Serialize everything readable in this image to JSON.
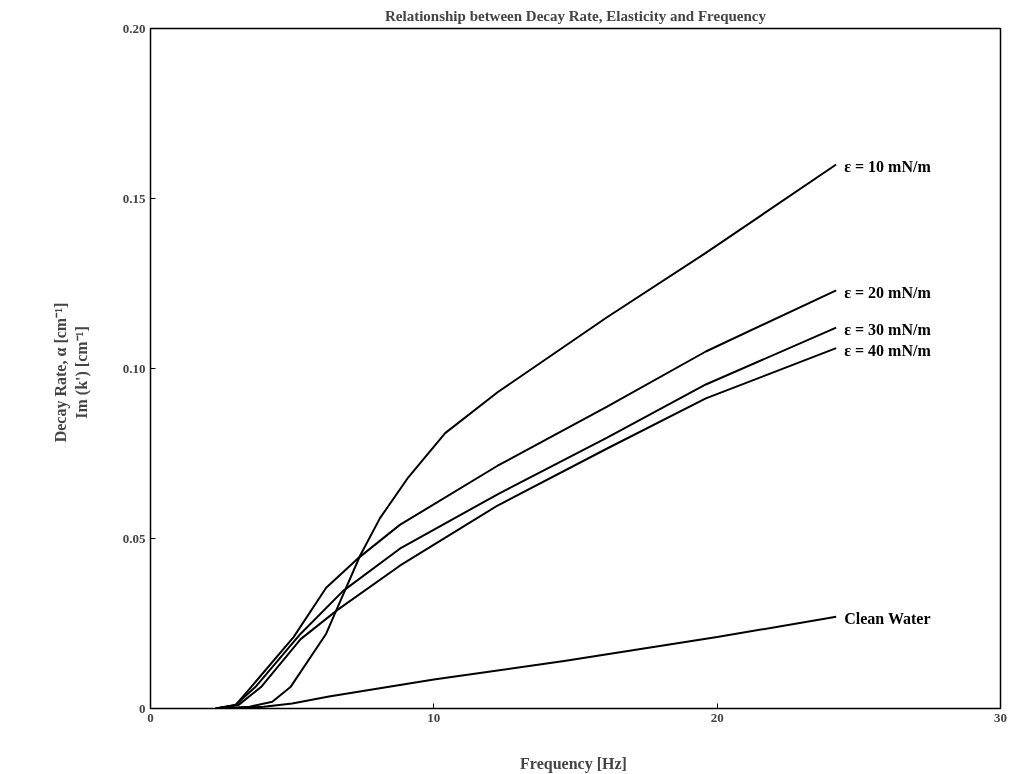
{
  "chart_data": {
    "type": "line",
    "title": "Relationship between Decay Rate, Elasticity and Frequency",
    "xlabel": "Frequency  [Hz]",
    "ylabel": "Decay Rate, α   [cm⁻¹]\nIm (k')   [cm⁻¹]",
    "xlim": [
      0,
      30
    ],
    "xticks": [
      0,
      10,
      20,
      30
    ],
    "ylim": [
      0,
      0.2
    ],
    "yticks": [
      0,
      0.05,
      {
        "value": 0.1,
        "label": "0.10"
      },
      0.15,
      {
        "value": 0.2,
        "label": "0.20"
      }
    ],
    "grid": false,
    "legend": false,
    "marker": "none",
    "line_style": "solid",
    "series": [
      {
        "name": "ε = 10 mN/m",
        "color": "#000000",
        "x": [
          2.5,
          3.5,
          4.3,
          4.94,
          6.2,
          7.4,
          8.1,
          9.1,
          10.4,
          12.25,
          16.1,
          19.6,
          24.2
        ],
        "values": [
          0,
          0.0005,
          0.002,
          0.0063,
          0.022,
          0.045,
          0.056,
          0.068,
          0.081,
          0.093,
          0.115,
          0.134,
          0.16
        ]
      },
      {
        "name": "ε = 20 mN/m",
        "color": "#000000",
        "x": [
          2.3,
          3.0,
          3.55,
          5.05,
          6.2,
          7.3,
          8.8,
          12.25,
          16.1,
          19.6,
          24.2
        ],
        "values": [
          0,
          0.001,
          0.0063,
          0.021,
          0.0355,
          0.044,
          0.054,
          0.0714,
          0.0887,
          0.105,
          0.123
        ]
      },
      {
        "name": "ε = 30 mN/m",
        "color": "#000000",
        "x": [
          2.3,
          3.0,
          3.7,
          5.3,
          6.8,
          8.8,
          12.25,
          16.1,
          19.6,
          24.2
        ],
        "values": [
          0,
          0.001,
          0.0063,
          0.022,
          0.0346,
          0.047,
          0.063,
          0.0796,
          0.0953,
          0.112
        ]
      },
      {
        "name": "ε = 40 mN/m",
        "color": "#000000",
        "x": [
          2.3,
          3.1,
          3.9,
          5.3,
          6.6,
          8.8,
          12.25,
          16.1,
          19.6,
          24.2
        ],
        "values": [
          0,
          0.001,
          0.0063,
          0.0204,
          0.029,
          0.042,
          0.0597,
          0.0764,
          0.0912,
          0.106
        ]
      },
      {
        "name": "Clean Water",
        "color": "#000000",
        "x": [
          2.5,
          4,
          5,
          6.3,
          10,
          14.6,
          20,
          24.2
        ],
        "values": [
          0,
          0.0005,
          0.0015,
          0.0035,
          0.0085,
          0.014,
          0.021,
          0.027
        ]
      }
    ]
  }
}
